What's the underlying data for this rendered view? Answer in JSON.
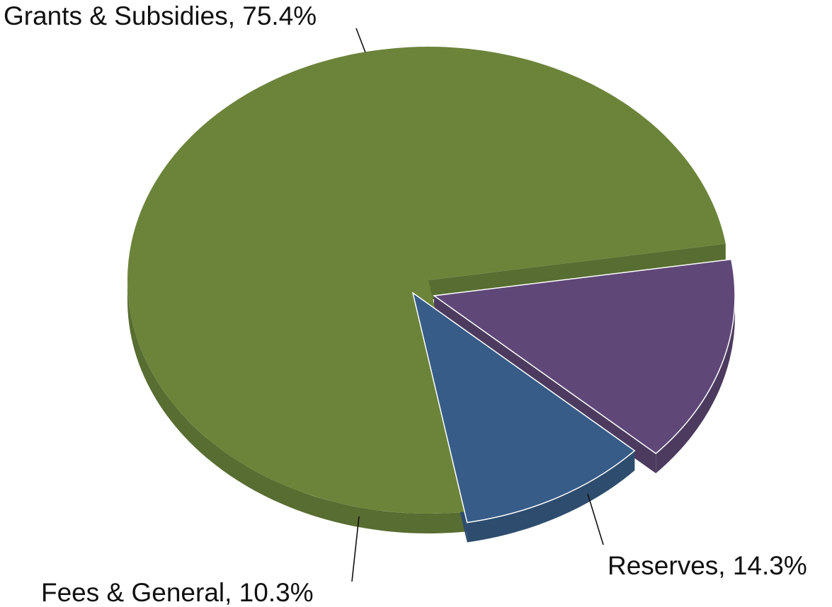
{
  "chart_data": {
    "type": "pie",
    "style": "3d-exploded",
    "title": "",
    "slices": [
      {
        "name": "Grants & Subsidies",
        "value": 75.4,
        "label": "Grants & Subsidies, 75.4%",
        "color": "#6B843A",
        "color_side": "#586D31",
        "exploded": false
      },
      {
        "name": "Reserves",
        "value": 14.3,
        "label": "Reserves, 14.3%",
        "color": "#5F4878",
        "color_side": "#4C3B5F",
        "exploded": true
      },
      {
        "name": "Fees & General",
        "value": 10.3,
        "label": "Fees & General, 10.3%",
        "color": "#375C88",
        "color_side": "#2E4D6E",
        "exploded": true
      }
    ]
  }
}
